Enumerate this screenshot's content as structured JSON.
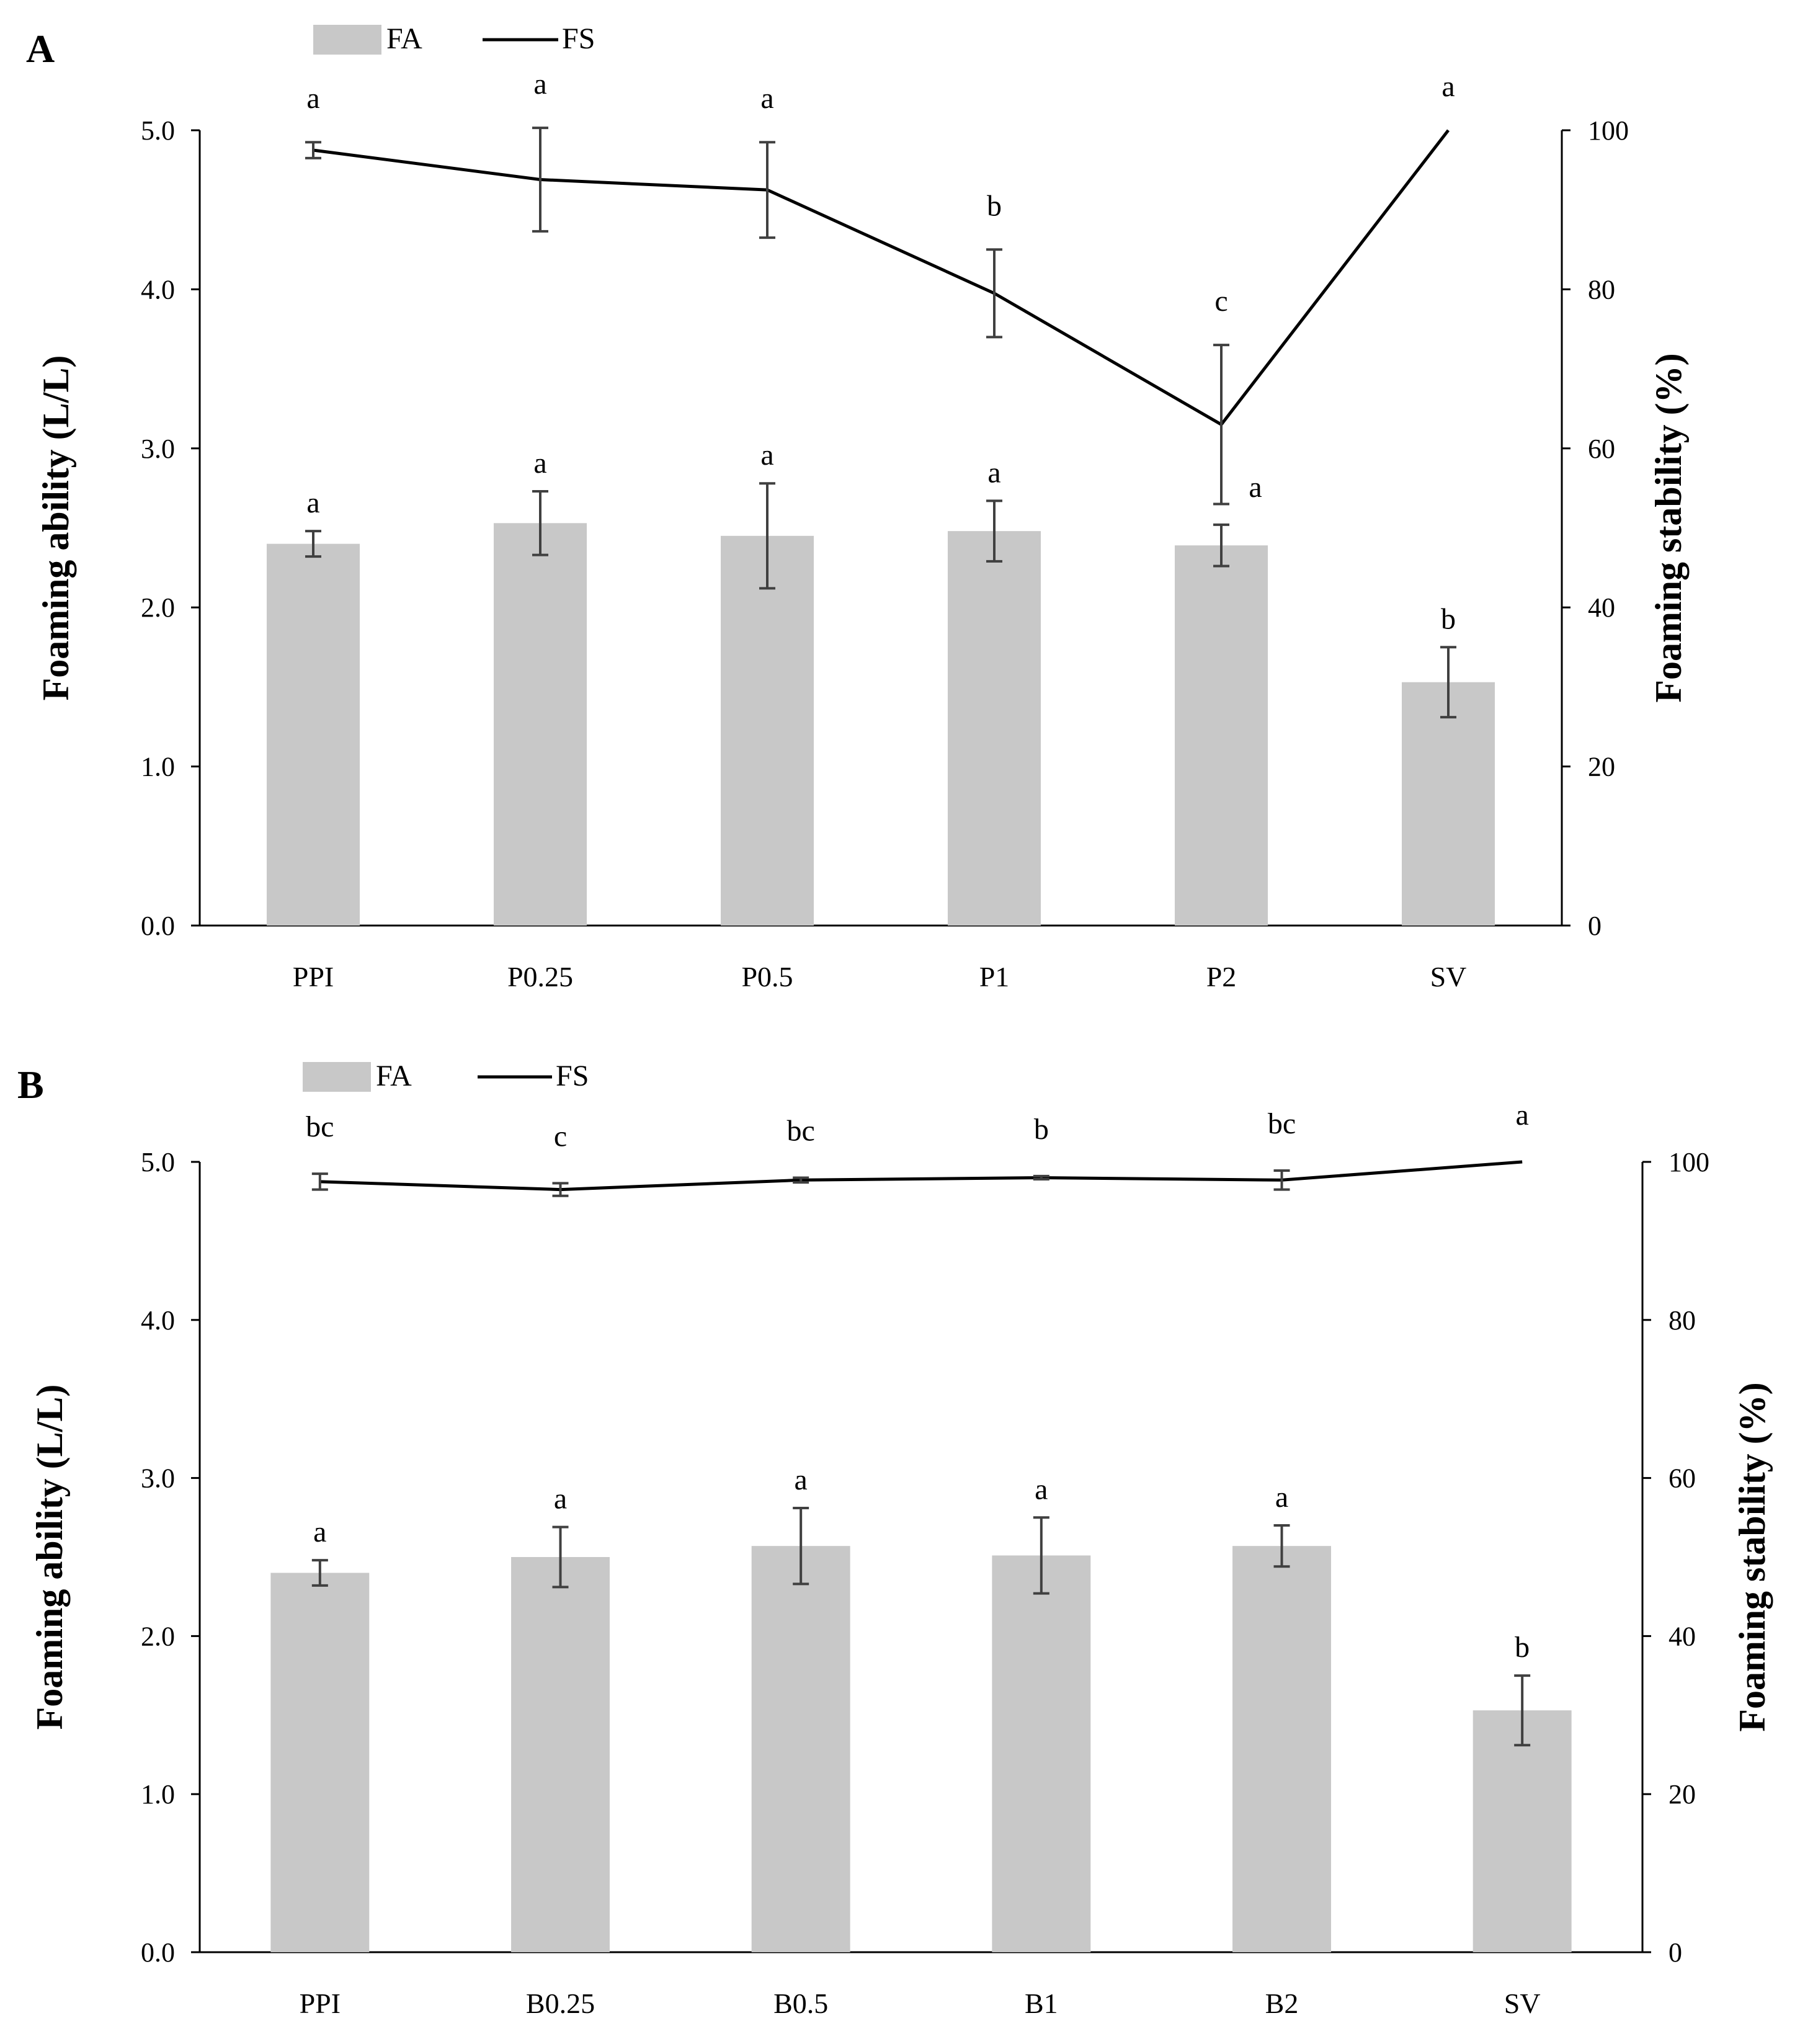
{
  "chart_data": [
    {
      "type": "bar+line",
      "panel_label": "A",
      "legend": {
        "bar": "FA",
        "line": "FS"
      },
      "categories": [
        "PPI",
        "P0.25",
        "P0.5",
        "P1",
        "P2",
        "SV"
      ],
      "series": [
        {
          "name": "FA",
          "type": "bar",
          "axis": "left",
          "values": [
            2.4,
            2.53,
            2.45,
            2.48,
            2.39,
            1.53
          ],
          "errors": [
            0.08,
            0.2,
            0.33,
            0.19,
            0.13,
            0.22
          ],
          "labels": [
            "a",
            "a",
            "a",
            "a",
            "a",
            "b"
          ]
        },
        {
          "name": "FS",
          "type": "line",
          "axis": "right",
          "values": [
            97.5,
            93.8,
            92.5,
            79.5,
            63.0,
            100
          ],
          "errors": [
            1.0,
            6.5,
            6.0,
            5.5,
            10.0,
            0
          ],
          "labels": [
            "a",
            "a",
            "a",
            "b",
            "c",
            "a"
          ]
        }
      ],
      "ylabel": "Foaming ability (L/L)",
      "y2label": "Foaming stability (%)",
      "ylim": [
        0,
        5
      ],
      "y2lim": [
        0,
        100
      ],
      "yticks": [
        "0.0",
        "1.0",
        "2.0",
        "3.0",
        "4.0",
        "5.0"
      ],
      "y2ticks": [
        "0",
        "20",
        "40",
        "60",
        "80",
        "100"
      ]
    },
    {
      "type": "bar+line",
      "panel_label": "B",
      "legend": {
        "bar": "FA",
        "line": "FS"
      },
      "categories": [
        "PPI",
        "B0.25",
        "B0.5",
        "B1",
        "B2",
        "SV"
      ],
      "series": [
        {
          "name": "FA",
          "type": "bar",
          "axis": "left",
          "values": [
            2.4,
            2.5,
            2.57,
            2.51,
            2.57,
            1.53
          ],
          "errors": [
            0.08,
            0.19,
            0.24,
            0.24,
            0.13,
            0.22
          ],
          "labels": [
            "a",
            "a",
            "a",
            "a",
            "a",
            "b"
          ]
        },
        {
          "name": "FS",
          "type": "line",
          "axis": "right",
          "values": [
            97.5,
            96.5,
            97.7,
            98.0,
            97.7,
            100
          ],
          "errors": [
            1.0,
            0.8,
            0.3,
            0.2,
            1.2,
            0
          ],
          "labels": [
            "bc",
            "c",
            "bc",
            "b",
            "bc",
            "a"
          ]
        }
      ],
      "ylabel": "Foaming ability (L/L)",
      "y2label": "Foaming stability (%)",
      "ylim": [
        0,
        5
      ],
      "y2lim": [
        0,
        100
      ],
      "yticks": [
        "0.0",
        "1.0",
        "2.0",
        "3.0",
        "4.0",
        "5.0"
      ],
      "y2ticks": [
        "0",
        "20",
        "40",
        "60",
        "80",
        "100"
      ]
    }
  ],
  "colors": {
    "bar": "#c8c8c8",
    "line": "#000000",
    "error_bar": "#404040",
    "axis": "#000000"
  }
}
